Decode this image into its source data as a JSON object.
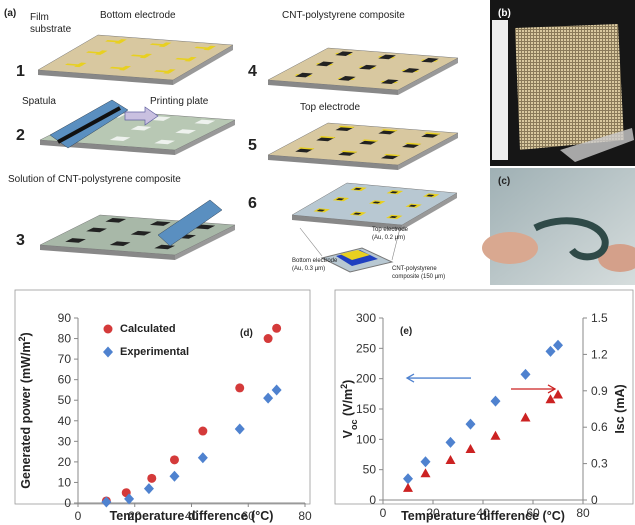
{
  "panels": {
    "a": {
      "label": "(a)",
      "steps": [
        "1",
        "2",
        "3",
        "4",
        "5",
        "6"
      ],
      "film_substrate": [
        "Film",
        "substrate"
      ],
      "bottom_electrode": "Bottom electrode",
      "spatula": "Spatula",
      "printing_plate": "Printing plate",
      "solution": "Solution of CNT-polystyrene composite",
      "composite": "CNT-polystyrene composite",
      "top_electrode": "Top electrode",
      "detail_top": [
        "Top electrode",
        "(Au, 0.2 µm)"
      ],
      "detail_bottom": [
        "Bottom electrode",
        "(Au, 0.3 µm)"
      ],
      "detail_composite": [
        "CNT-polystyrene",
        "composite (150 µm)"
      ]
    },
    "b": {
      "label": "(b)"
    },
    "c": {
      "label": "(c)"
    }
  },
  "chart_data": [
    {
      "type": "scatter",
      "panel_label": "(d)",
      "xlabel": "Temperature difference (°C)",
      "ylabel": [
        "Generated power (mW/m",
        "2",
        ")"
      ],
      "xlim": [
        0,
        80
      ],
      "xticks": [
        0,
        20,
        40,
        60,
        80
      ],
      "ylim": [
        0,
        90
      ],
      "yticks": [
        0,
        10,
        20,
        30,
        40,
        50,
        60,
        70,
        80,
        90
      ],
      "series": [
        {
          "name": "Calculated",
          "color": "#d43a3a",
          "marker": "circle",
          "x": [
            10,
            17,
            26,
            34,
            44,
            57,
            67,
            70
          ],
          "values": [
            1,
            5,
            12,
            21,
            35,
            56,
            80,
            85
          ]
        },
        {
          "name": "Experimental",
          "color": "#4f82cf",
          "marker": "diamond",
          "x": [
            10,
            18,
            25,
            34,
            44,
            57,
            67,
            70
          ],
          "values": [
            0.5,
            2,
            7,
            13,
            22,
            36,
            51,
            55
          ]
        }
      ]
    },
    {
      "type": "scatter",
      "panel_label": "(e)",
      "xlabel": "Temperature difference (°C)",
      "ylabel": [
        "V",
        "oc",
        " (V/m",
        "2",
        ")"
      ],
      "y2label": "Isc (mA)",
      "xlim": [
        0,
        80
      ],
      "xticks": [
        0,
        20,
        40,
        60,
        80
      ],
      "ylim": [
        0,
        300
      ],
      "yticks": [
        0,
        50,
        100,
        150,
        200,
        250,
        300
      ],
      "y2lim": [
        0,
        1.5
      ],
      "y2ticks": [
        0,
        0.3,
        0.6,
        0.9,
        1.2,
        1.5
      ],
      "series": [
        {
          "color": "#4f82cf",
          "marker": "diamond",
          "x": [
            10,
            17,
            27,
            35,
            45,
            57,
            67,
            70
          ],
          "values": [
            35,
            63,
            95,
            125,
            163,
            207,
            245,
            255
          ]
        },
        {
          "color": "#cc2222",
          "marker": "triangle",
          "axis": "y2",
          "x": [
            10,
            17,
            27,
            35,
            45,
            57,
            67,
            70
          ],
          "values": [
            0.1,
            0.22,
            0.33,
            0.42,
            0.53,
            0.68,
            0.83,
            0.87
          ]
        }
      ]
    }
  ]
}
